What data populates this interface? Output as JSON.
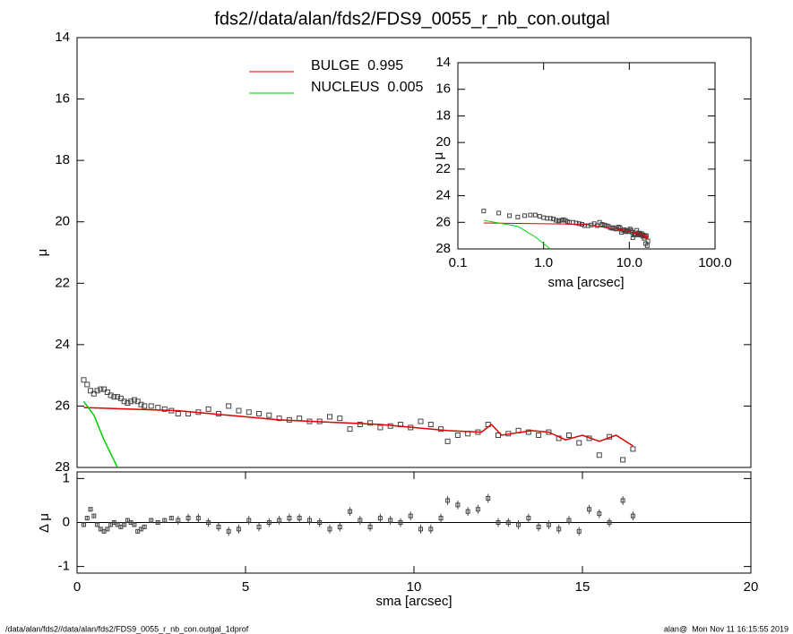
{
  "footer_left": "/data/alan/fds2//data/alan/fds2/FDS9_0055_r_nb_con.outgal_1dprof",
  "footer_right": "alan@  Mon Nov 11 16:15:55 2019",
  "chart_data": [
    {
      "type": "scatter",
      "title": "fds2//data/alan/fds2/FDS9_0055_r_nb_con.outgal",
      "ylabel": "μ",
      "xlim": [
        0,
        20
      ],
      "ylim": [
        28,
        14
      ],
      "yticks": [
        14,
        16,
        18,
        20,
        22,
        24,
        26,
        28
      ],
      "series": [
        {
          "color": "#444444",
          "x": [
            0.2,
            0.3,
            0.4,
            0.5,
            0.6,
            0.7,
            0.8,
            0.9,
            1.0,
            1.1,
            1.2,
            1.3,
            1.4,
            1.5,
            1.6,
            1.7,
            1.8,
            1.9,
            2.0,
            2.2,
            2.4,
            2.6,
            2.8,
            3.0,
            3.3,
            3.6,
            3.9,
            4.2,
            4.5,
            4.8,
            5.1,
            5.4,
            5.7,
            6.0,
            6.3,
            6.6,
            6.9,
            7.2,
            7.5,
            7.8,
            8.1,
            8.4,
            8.7,
            9.0,
            9.3,
            9.6,
            9.9,
            10.2,
            10.5,
            10.8,
            11.0,
            11.3,
            11.6,
            11.9,
            12.2,
            12.5,
            12.8,
            13.1,
            13.4,
            13.7,
            14.0,
            14.3,
            14.6,
            14.9,
            15.2,
            15.5,
            15.8,
            16.2,
            16.5
          ],
          "values": [
            25.15,
            25.3,
            25.5,
            25.6,
            25.5,
            25.45,
            25.45,
            25.55,
            25.65,
            25.7,
            25.7,
            25.75,
            25.85,
            25.9,
            25.85,
            25.8,
            25.85,
            25.95,
            26.0,
            26.0,
            26.05,
            26.1,
            26.15,
            26.25,
            26.25,
            26.2,
            26.1,
            26.25,
            26.0,
            26.15,
            26.2,
            26.25,
            26.3,
            26.4,
            26.45,
            26.4,
            26.5,
            26.5,
            26.35,
            26.4,
            26.75,
            26.6,
            26.55,
            26.7,
            26.65,
            26.6,
            26.7,
            26.5,
            26.6,
            26.75,
            27.15,
            26.95,
            26.9,
            26.85,
            26.6,
            26.95,
            26.9,
            26.8,
            26.85,
            26.95,
            26.85,
            27.05,
            26.95,
            27.2,
            27.05,
            27.6,
            27.0,
            27.75,
            27.4
          ]
        },
        {
          "name": "BULGE  0.995",
          "color": "#e00000",
          "x": [
            0.2,
            3,
            6,
            9,
            11,
            12,
            12.3,
            12.6,
            13.5,
            14,
            14.5,
            15,
            15.5,
            16,
            16.5
          ],
          "values": [
            26.05,
            26.15,
            26.45,
            26.6,
            26.8,
            26.85,
            26.6,
            26.95,
            26.8,
            26.85,
            27.1,
            26.95,
            27.15,
            26.95,
            27.3
          ]
        },
        {
          "name": "NUCLEUS  0.005",
          "color": "#00d000",
          "x": [
            0.2,
            0.5,
            0.8,
            1.2
          ],
          "values": [
            25.85,
            26.3,
            27.1,
            28.0
          ]
        }
      ]
    },
    {
      "type": "residual",
      "xlabel": "sma [arcsec]",
      "ylabel": "Δ μ",
      "xlim": [
        0,
        20
      ],
      "xticks": [
        0,
        5,
        10,
        15,
        20
      ],
      "ylim": [
        -1.15,
        1.15
      ],
      "yticks": [
        -1,
        0,
        1
      ],
      "hline": 0,
      "values": [
        -0.05,
        0.1,
        0.3,
        0.15,
        -0.05,
        -0.15,
        -0.2,
        -0.15,
        -0.05,
        0.0,
        -0.05,
        -0.1,
        -0.05,
        0.05,
        0.0,
        -0.05,
        -0.2,
        -0.15,
        -0.1,
        0.05,
        0.0,
        0.05,
        0.1,
        0.05,
        0.1,
        0.1,
        0.0,
        -0.1,
        -0.2,
        -0.15,
        0.05,
        -0.1,
        0.0,
        0.05,
        0.1,
        0.1,
        0.05,
        0.0,
        -0.15,
        -0.1,
        0.25,
        0.05,
        -0.1,
        0.1,
        0.05,
        0.0,
        0.15,
        -0.15,
        -0.15,
        0.1,
        0.5,
        0.4,
        0.25,
        0.3,
        0.55,
        0.0,
        0.0,
        -0.05,
        0.1,
        -0.1,
        -0.05,
        -0.15,
        0.05,
        -0.2,
        0.3,
        0.2,
        0.0,
        0.5,
        0.15
      ],
      "errors": [
        0.05,
        0.05,
        0.05,
        0.05,
        0.05,
        0.05,
        0.05,
        0.05,
        0.05,
        0.05,
        0.05,
        0.05,
        0.05,
        0.05,
        0.05,
        0.05,
        0.05,
        0.05,
        0.05,
        0.05,
        0.05,
        0.05,
        0.05,
        0.1,
        0.1,
        0.1,
        0.1,
        0.1,
        0.1,
        0.1,
        0.1,
        0.1,
        0.1,
        0.1,
        0.1,
        0.1,
        0.1,
        0.1,
        0.1,
        0.1,
        0.1,
        0.1,
        0.1,
        0.1,
        0.1,
        0.1,
        0.1,
        0.1,
        0.1,
        0.1,
        0.1,
        0.1,
        0.1,
        0.1,
        0.1,
        0.1,
        0.1,
        0.1,
        0.1,
        0.1,
        0.1,
        0.1,
        0.1,
        0.1,
        0.1,
        0.1,
        0.1,
        0.1,
        0.1
      ]
    },
    {
      "type": "inset",
      "xlabel": "sma [arcsec]",
      "ylabel": "μ",
      "xscale": "log",
      "xlim": [
        0.1,
        100
      ],
      "xticks": [
        0.1,
        {
          "value": 1,
          "label": "1.0"
        },
        {
          "value": 10,
          "label": "10.0"
        },
        {
          "value": 100,
          "label": "100.0"
        }
      ],
      "ylim": [
        28,
        14
      ],
      "yticks": [
        14,
        16,
        18,
        20,
        22,
        24,
        26,
        28
      ]
    }
  ]
}
